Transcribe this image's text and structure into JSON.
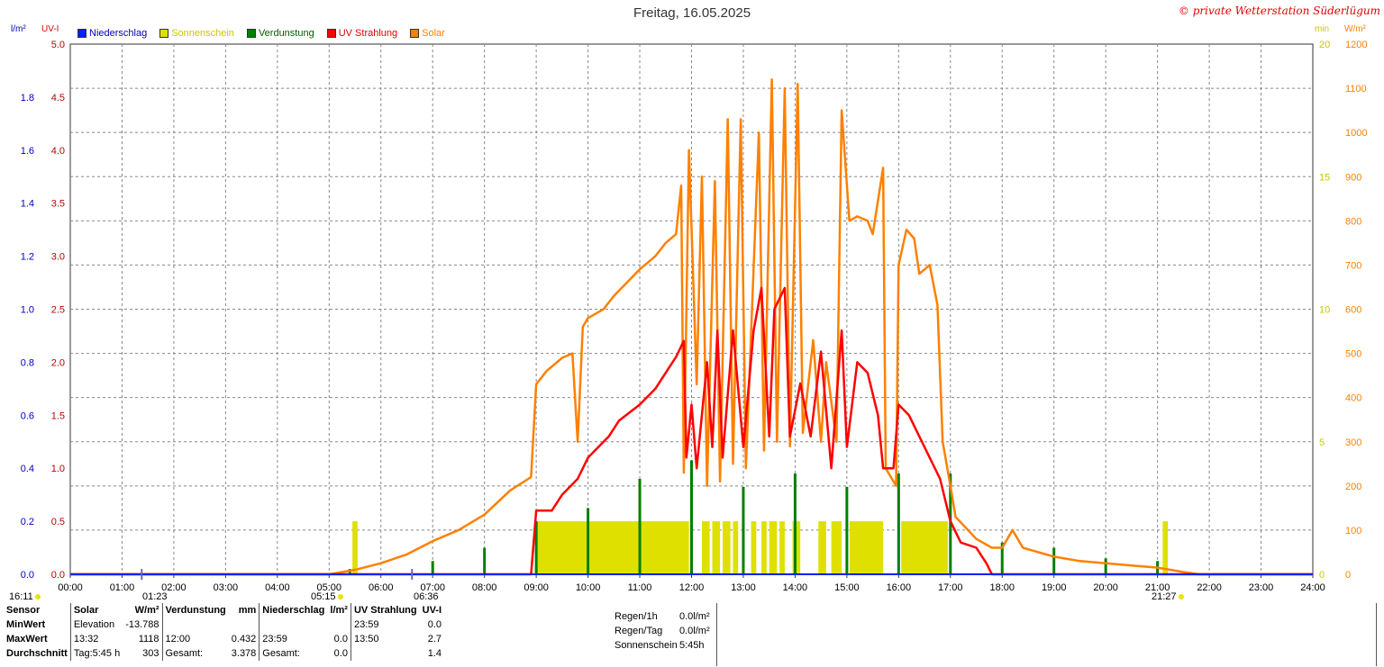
{
  "title": "Freitag, 16.05.2025",
  "credit": "© private Wetterstation Süderlügum",
  "units": {
    "left_rain": "l/m²",
    "left_uv": "UV-I",
    "right_min": "min",
    "right_solar": "W/m²"
  },
  "legend": [
    {
      "label": "Niederschlag",
      "color": "#0020ff",
      "text_color": "#0000c0"
    },
    {
      "label": "Sonnenschein",
      "color": "#e0e000",
      "text_color": "#c8c800"
    },
    {
      "label": "Verdunstung",
      "color": "#008000",
      "text_color": "#006000"
    },
    {
      "label": "UV Strahlung",
      "color": "#ff0000",
      "text_color": "#e00000"
    },
    {
      "label": "Solar",
      "color": "#ff8000",
      "text_color": "#ff8000"
    }
  ],
  "events": [
    {
      "text": "16:11",
      "dot": true
    },
    {
      "text": "01:23",
      "dot": false
    },
    {
      "text": "05:15",
      "dot": true
    },
    {
      "text": "06:36",
      "dot": false
    },
    {
      "text": "21:27",
      "dot": true
    }
  ],
  "stats": {
    "sensor_hdr": "Sensor",
    "solar_hdr": "Solar",
    "solar_unit": "W/m²",
    "verd_hdr": "Verdunstung",
    "verd_unit": "mm",
    "nied_hdr": "Niederschlag",
    "nied_unit": "l/m²",
    "uv_hdr": "UV Strahlung",
    "uv_unit": "UV-I",
    "minwert": "MinWert",
    "maxwert": "MaxWert",
    "durchschnitt": "Durchschnitt",
    "solar_min_label": "Elevation",
    "solar_min_val": "-13.788",
    "solar_max_time": "13:32",
    "solar_max_val": "1118",
    "solar_avg_label": "Tag:5:45 h",
    "solar_avg_val": "303",
    "verd_max_time": "12:00",
    "verd_max_val": "0.432",
    "verd_total_label": "Gesamt:",
    "verd_total_val": "3.378",
    "nied_max_time": "23:59",
    "nied_max_val": "0.0",
    "nied_total_label": "Gesamt:",
    "nied_total_val": "0.0",
    "uv_min_time": "23:59",
    "uv_min_val": "0.0",
    "uv_max_time": "13:50",
    "uv_max_val": "2.7",
    "uv_avg_val": "1.4"
  },
  "rain_summary": [
    {
      "label": "Regen/1h",
      "value": "0.0l/m²"
    },
    {
      "label": "Regen/Tag",
      "value": "0.0l/m²"
    },
    {
      "label": "Sonnenschein",
      "value": "5:45h"
    }
  ],
  "chart_data": {
    "type": "line",
    "title": "Freitag, 16.05.2025",
    "x_ticks": [
      "00:00",
      "01:00",
      "02:00",
      "03:00",
      "04:00",
      "05:00",
      "06:00",
      "07:00",
      "08:00",
      "09:00",
      "10:00",
      "11:00",
      "12:00",
      "13:00",
      "14:00",
      "15:00",
      "16:00",
      "17:00",
      "18:00",
      "19:00",
      "20:00",
      "21:00",
      "22:00",
      "23:00",
      "24:00"
    ],
    "axes": {
      "left_rain": {
        "unit": "l/m²",
        "range": [
          0,
          2.0
        ],
        "ticks": [
          "0.0",
          "0.2",
          "0.4",
          "0.6",
          "0.8",
          "1.0",
          "1.2",
          "1.4",
          "1.6",
          "1.8"
        ]
      },
      "left_uv": {
        "unit": "UV-I",
        "range": [
          0,
          5.0
        ],
        "ticks": [
          "0.0",
          "0.5",
          "1.0",
          "1.5",
          "2.0",
          "2.5",
          "3.0",
          "3.5",
          "4.0",
          "4.5",
          "5.0"
        ]
      },
      "right_min": {
        "unit": "min",
        "range": [
          0,
          20
        ],
        "ticks": [
          "0",
          "5",
          "10",
          "15",
          "20"
        ]
      },
      "right_solar": {
        "unit": "W/m²",
        "range": [
          0,
          1200
        ],
        "ticks": [
          "0",
          "100",
          "200",
          "300",
          "400",
          "500",
          "600",
          "700",
          "800",
          "900",
          "1000",
          "1100",
          "1200"
        ]
      }
    },
    "grid": true,
    "legend_position": "top-left",
    "series": [
      {
        "name": "Solar",
        "axis": "right_solar",
        "color": "#ff8000",
        "points": [
          [
            0,
            0
          ],
          [
            5,
            0
          ],
          [
            5.5,
            10
          ],
          [
            6,
            25
          ],
          [
            6.5,
            45
          ],
          [
            7,
            75
          ],
          [
            7.5,
            100
          ],
          [
            8,
            135
          ],
          [
            8.5,
            190
          ],
          [
            8.9,
            220
          ],
          [
            9,
            430
          ],
          [
            9.2,
            460
          ],
          [
            9.5,
            490
          ],
          [
            9.7,
            500
          ],
          [
            9.8,
            300
          ],
          [
            9.9,
            560
          ],
          [
            10,
            580
          ],
          [
            10.3,
            600
          ],
          [
            10.5,
            630
          ],
          [
            11,
            690
          ],
          [
            11.3,
            720
          ],
          [
            11.5,
            750
          ],
          [
            11.7,
            770
          ],
          [
            11.8,
            880
          ],
          [
            11.85,
            230
          ],
          [
            11.95,
            960
          ],
          [
            12.1,
            430
          ],
          [
            12.2,
            900
          ],
          [
            12.3,
            200
          ],
          [
            12.45,
            890
          ],
          [
            12.55,
            210
          ],
          [
            12.7,
            1030
          ],
          [
            12.8,
            250
          ],
          [
            12.95,
            1030
          ],
          [
            13.05,
            240
          ],
          [
            13.3,
            1000
          ],
          [
            13.4,
            280
          ],
          [
            13.55,
            1120
          ],
          [
            13.65,
            300
          ],
          [
            13.8,
            1100
          ],
          [
            13.9,
            290
          ],
          [
            14.05,
            1110
          ],
          [
            14.15,
            320
          ],
          [
            14.35,
            530
          ],
          [
            14.5,
            300
          ],
          [
            14.6,
            480
          ],
          [
            14.8,
            300
          ],
          [
            14.9,
            1050
          ],
          [
            15.05,
            800
          ],
          [
            15.2,
            810
          ],
          [
            15.4,
            800
          ],
          [
            15.5,
            770
          ],
          [
            15.7,
            920
          ],
          [
            15.75,
            240
          ],
          [
            15.95,
            200
          ],
          [
            16.0,
            700
          ],
          [
            16.15,
            780
          ],
          [
            16.3,
            760
          ],
          [
            16.4,
            680
          ],
          [
            16.6,
            700
          ],
          [
            16.75,
            610
          ],
          [
            16.85,
            300
          ],
          [
            17.0,
            200
          ],
          [
            17.1,
            130
          ],
          [
            17.5,
            80
          ],
          [
            17.8,
            60
          ],
          [
            18,
            60
          ],
          [
            18.2,
            100
          ],
          [
            18.4,
            60
          ],
          [
            18.7,
            50
          ],
          [
            19,
            40
          ],
          [
            19.5,
            30
          ],
          [
            20,
            25
          ],
          [
            20.5,
            20
          ],
          [
            21,
            15
          ],
          [
            21.5,
            5
          ],
          [
            21.8,
            0
          ],
          [
            24,
            0
          ]
        ]
      },
      {
        "name": "UV Strahlung",
        "axis": "left_uv",
        "color": "#ff0000",
        "points": [
          [
            0,
            0
          ],
          [
            8.9,
            0
          ],
          [
            9.0,
            0.6
          ],
          [
            9.3,
            0.6
          ],
          [
            9.5,
            0.75
          ],
          [
            9.8,
            0.9
          ],
          [
            10.0,
            1.1
          ],
          [
            10.4,
            1.3
          ],
          [
            10.6,
            1.45
          ],
          [
            11.0,
            1.6
          ],
          [
            11.3,
            1.75
          ],
          [
            11.5,
            1.9
          ],
          [
            11.7,
            2.05
          ],
          [
            11.85,
            2.2
          ],
          [
            11.9,
            1.1
          ],
          [
            12.0,
            1.6
          ],
          [
            12.1,
            1.0
          ],
          [
            12.3,
            2.0
          ],
          [
            12.4,
            1.2
          ],
          [
            12.5,
            2.3
          ],
          [
            12.6,
            1.1
          ],
          [
            12.8,
            2.3
          ],
          [
            13.0,
            1.2
          ],
          [
            13.2,
            2.3
          ],
          [
            13.35,
            2.7
          ],
          [
            13.5,
            1.3
          ],
          [
            13.6,
            2.5
          ],
          [
            13.8,
            2.7
          ],
          [
            13.9,
            1.3
          ],
          [
            14.1,
            1.8
          ],
          [
            14.3,
            1.3
          ],
          [
            14.5,
            2.1
          ],
          [
            14.7,
            1.0
          ],
          [
            14.9,
            2.3
          ],
          [
            15.0,
            1.2
          ],
          [
            15.2,
            2.0
          ],
          [
            15.4,
            1.9
          ],
          [
            15.6,
            1.5
          ],
          [
            15.7,
            1.0
          ],
          [
            15.9,
            1.0
          ],
          [
            16.0,
            1.6
          ],
          [
            16.2,
            1.5
          ],
          [
            16.4,
            1.3
          ],
          [
            16.6,
            1.1
          ],
          [
            16.8,
            0.9
          ],
          [
            17.0,
            0.5
          ],
          [
            17.2,
            0.3
          ],
          [
            17.5,
            0.25
          ],
          [
            17.7,
            0.1
          ],
          [
            17.8,
            0
          ],
          [
            24,
            0
          ]
        ]
      },
      {
        "name": "Verdunstung",
        "axis": "left_rain",
        "color": "#008000",
        "bars": [
          [
            5.4,
            0.02
          ],
          [
            7.0,
            0.05
          ],
          [
            8.0,
            0.1
          ],
          [
            9.0,
            0.2
          ],
          [
            10.0,
            0.25
          ],
          [
            11.0,
            0.36
          ],
          [
            12.0,
            0.43
          ],
          [
            13.0,
            0.33
          ],
          [
            14.0,
            0.38
          ],
          [
            15.0,
            0.33
          ],
          [
            16.0,
            0.38
          ],
          [
            17.0,
            0.38
          ],
          [
            18.0,
            0.12
          ],
          [
            19.0,
            0.1
          ],
          [
            20.0,
            0.06
          ],
          [
            21.0,
            0.05
          ]
        ]
      },
      {
        "name": "Sonnenschein",
        "axis": "right_min",
        "color": "#e0e000",
        "intervals": [
          [
            5.45,
            5.55,
            2
          ],
          [
            9.0,
            11.95,
            2
          ],
          [
            12.2,
            12.35,
            2
          ],
          [
            12.4,
            12.55,
            2
          ],
          [
            12.6,
            12.75,
            2
          ],
          [
            12.8,
            12.9,
            2
          ],
          [
            13.15,
            13.25,
            2
          ],
          [
            13.35,
            13.45,
            2
          ],
          [
            13.5,
            13.65,
            2
          ],
          [
            13.7,
            13.8,
            2
          ],
          [
            13.95,
            14.1,
            2
          ],
          [
            14.45,
            14.6,
            2
          ],
          [
            14.7,
            14.9,
            2
          ],
          [
            15.05,
            15.7,
            2
          ],
          [
            16.05,
            16.95,
            2
          ],
          [
            21.1,
            21.2,
            2
          ]
        ]
      },
      {
        "name": "Niederschlag",
        "axis": "left_rain",
        "color": "#0020ff",
        "points": [
          [
            0,
            0
          ],
          [
            24,
            0
          ]
        ]
      }
    ]
  }
}
